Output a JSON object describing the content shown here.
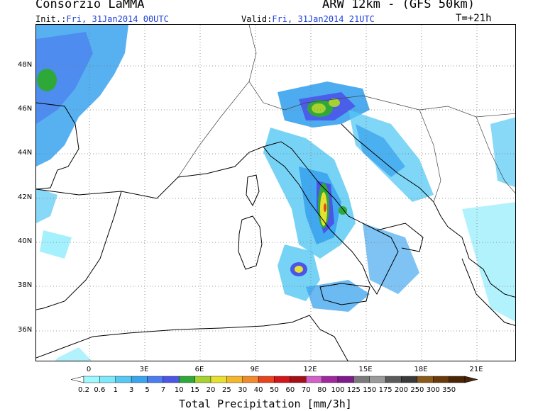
{
  "header": {
    "org": "Consorzio LaMMA",
    "model": "ARW 12km - (GFS 50km)",
    "init_label": "Init.:",
    "init_value": "Fri, 31Jan2014 00UTC",
    "valid_label": "Valid:",
    "valid_value": "Fri, 31Jan2014 21UTC",
    "lead_time": "T=+21h"
  },
  "map": {
    "lat_labels": [
      "48N",
      "46N",
      "44N",
      "42N",
      "40N",
      "38N",
      "36N"
    ],
    "lon_labels": [
      "0",
      "3E",
      "6E",
      "9E",
      "12E",
      "15E",
      "18E",
      "21E"
    ]
  },
  "colorbar": {
    "title": "Total Precipitation [mm/3h]",
    "ticks": [
      "0.2",
      "0.6",
      "1",
      "3",
      "5",
      "7",
      "10",
      "15",
      "20",
      "25",
      "30",
      "40",
      "50",
      "60",
      "70",
      "80",
      "100",
      "125",
      "150",
      "175",
      "200",
      "250",
      "300",
      "350"
    ],
    "colors": [
      "#9ff7ff",
      "#7ee9fb",
      "#55c8f4",
      "#3aa3ee",
      "#4b7cf0",
      "#4b55e8",
      "#2fa83a",
      "#a6d12f",
      "#e8e02e",
      "#f2b72a",
      "#f08a2a",
      "#e8431f",
      "#d2141b",
      "#a50f17",
      "#d061c8",
      "#a0289e",
      "#7e1a8c",
      "#7a7a7a",
      "#9a9a9a",
      "#5a5a5a",
      "#3a3a3a",
      "#8a5a1a",
      "#6a3a0a",
      "#4a2608"
    ]
  }
}
